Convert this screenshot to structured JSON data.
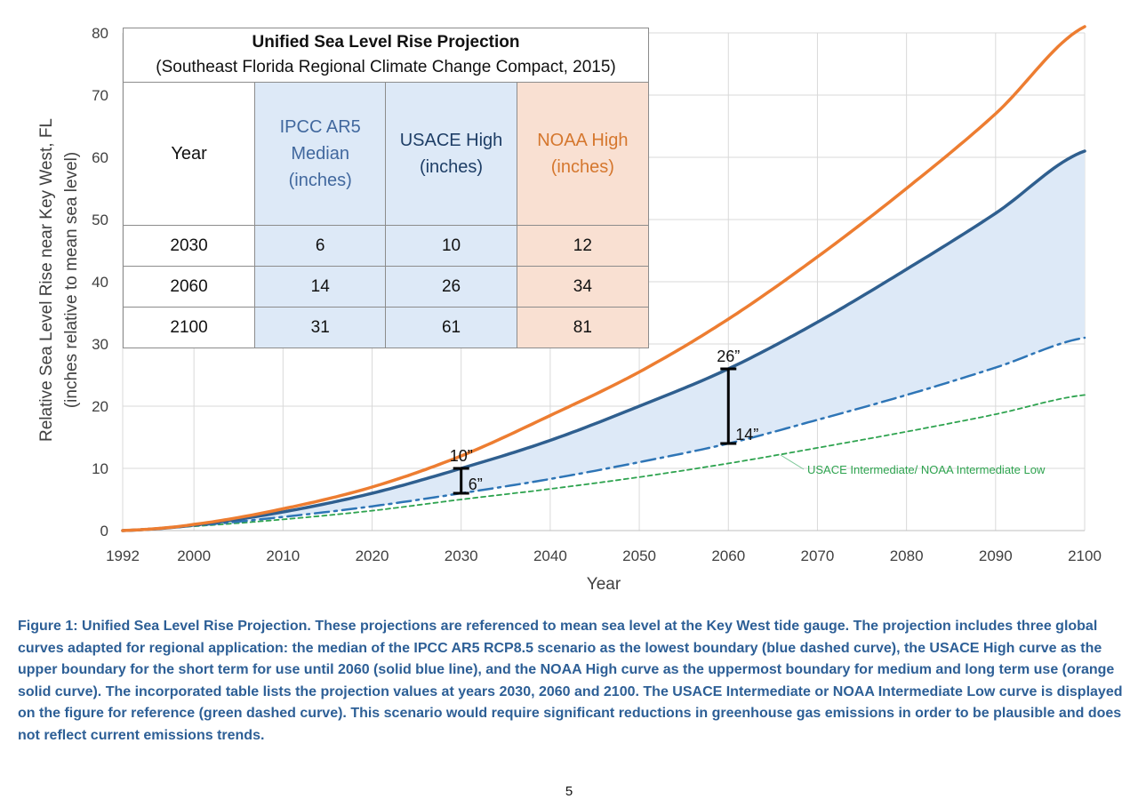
{
  "chart_data": {
    "type": "line",
    "xlabel": "Year",
    "ylabel": "Relative Sea Level Rise near Key West, FL",
    "ylabel2": "(inches relative to mean sea level)",
    "xlim": [
      1992,
      2100
    ],
    "ylim": [
      0,
      80
    ],
    "x_ticks": [
      1992,
      2000,
      2010,
      2020,
      2030,
      2040,
      2050,
      2060,
      2070,
      2080,
      2090,
      2100
    ],
    "y_ticks": [
      0,
      10,
      20,
      30,
      40,
      50,
      60,
      70,
      80
    ],
    "grid": true,
    "series": [
      {
        "key": "noaa_high",
        "style": "solid",
        "color": "#ed7d31",
        "x": [
          1992,
          2000,
          2010,
          2020,
          2030,
          2040,
          2050,
          2060,
          2070,
          2080,
          2090,
          2100
        ],
        "values": [
          0,
          1,
          3.5,
          7,
          12,
          18.5,
          25.5,
          34,
          44,
          55,
          67,
          81
        ]
      },
      {
        "key": "usace_high",
        "style": "solid",
        "color": "#2f5f8f",
        "x": [
          1992,
          2000,
          2010,
          2020,
          2030,
          2040,
          2050,
          2060,
          2070,
          2080,
          2090,
          2100
        ],
        "values": [
          0,
          0.9,
          3,
          6,
          10,
          14.5,
          20,
          26,
          33.5,
          42,
          51,
          61
        ]
      },
      {
        "key": "ipcc_ar5_median",
        "style": "dashdot",
        "color": "#2e75b6",
        "x": [
          1992,
          2000,
          2010,
          2020,
          2030,
          2040,
          2050,
          2060,
          2070,
          2080,
          2090,
          2100
        ],
        "values": [
          0,
          0.8,
          2.2,
          3.9,
          6,
          8.3,
          11,
          14,
          17.8,
          21.8,
          26.2,
          31
        ]
      },
      {
        "key": "usace_intermediate",
        "name": "USACE Intermediate/ NOAA Intermediate Low",
        "style": "dashed",
        "color": "#2ea34f",
        "x": [
          1992,
          2000,
          2010,
          2020,
          2030,
          2040,
          2050,
          2060,
          2070,
          2080,
          2090,
          2100
        ],
        "values": [
          0,
          0.7,
          1.8,
          3.2,
          5,
          6.7,
          8.6,
          10.8,
          13.3,
          15.9,
          18.7,
          21.8
        ]
      }
    ],
    "annotations": [
      {
        "x": 2030,
        "y_low": 6,
        "y_high": 10,
        "label_high": "10”",
        "label_low": "6”"
      },
      {
        "x": 2060,
        "y_low": 14,
        "y_high": 26,
        "label_high": "26”",
        "label_low": "14”"
      }
    ],
    "shaded_band": {
      "between": [
        "ipcc_ar5_median",
        "usace_high"
      ],
      "color": "#dde9f7"
    }
  },
  "table": {
    "title": "Unified Sea Level Rise Projection",
    "subtitle": "(Southeast Florida Regional Climate Change Compact, 2015)",
    "headers": [
      "Year",
      "IPCC AR5 Median (inches)",
      "USACE High (inches)",
      "NOAA High (inches)"
    ],
    "header_lines": [
      [
        "Year"
      ],
      [
        "IPCC AR5",
        "Median",
        "(inches)"
      ],
      [
        "USACE High",
        "(inches)"
      ],
      [
        "NOAA High",
        "(inches)"
      ]
    ],
    "rows": [
      [
        "2030",
        "6",
        "10",
        "12"
      ],
      [
        "2060",
        "14",
        "26",
        "34"
      ],
      [
        "2100",
        "31",
        "61",
        "81"
      ]
    ]
  },
  "caption": "Figure 1: Unified Sea Level Rise Projection. These projections are referenced to mean sea level at the Key West tide gauge. The projection includes three global curves adapted for regional application: the median of the IPCC AR5 RCP8.5 scenario as the lowest boundary (blue dashed curve), the USACE High curve as the upper boundary for the short term for use until 2060 (solid blue line), and the NOAA High curve as the uppermost boundary for medium and long term use (orange solid curve). The incorporated table lists the projection values at years 2030, 2060 and 2100. The USACE Intermediate or NOAA Intermediate Low curve is displayed on the figure for reference (green dashed curve). This scenario would require significant reductions in greenhouse gas emissions in order to be plausible and does not reflect current emissions trends.",
  "page_number": "5"
}
